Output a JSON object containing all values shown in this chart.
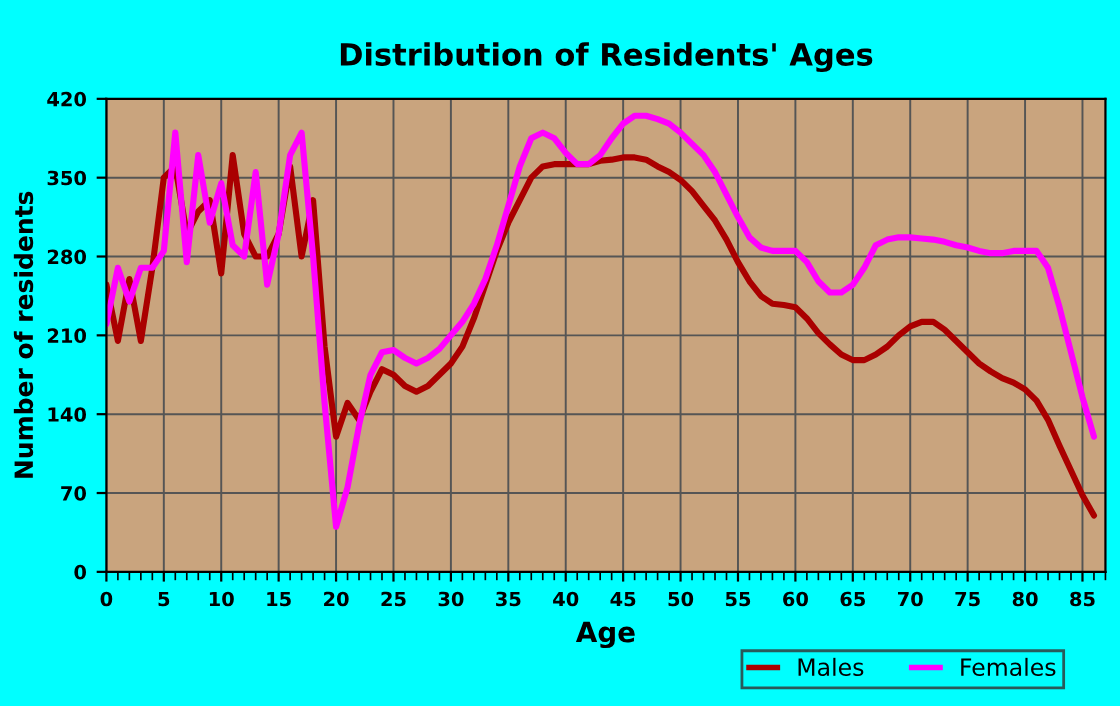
{
  "chart_data": {
    "type": "line",
    "title": "Distribution of Residents' Ages",
    "xlabel": "Age",
    "ylabel": "Number of residents",
    "x": [
      0,
      1,
      2,
      3,
      4,
      5,
      6,
      7,
      8,
      9,
      10,
      11,
      12,
      13,
      14,
      15,
      16,
      17,
      18,
      19,
      20,
      21,
      22,
      23,
      24,
      25,
      26,
      27,
      28,
      29,
      30,
      31,
      32,
      33,
      34,
      35,
      36,
      37,
      38,
      39,
      40,
      41,
      42,
      43,
      44,
      45,
      46,
      47,
      48,
      49,
      50,
      51,
      52,
      53,
      54,
      55,
      56,
      57,
      58,
      59,
      60,
      61,
      62,
      63,
      64,
      65,
      66,
      67,
      68,
      69,
      70,
      71,
      72,
      73,
      74,
      75,
      76,
      77,
      78,
      79,
      80,
      81,
      82,
      83,
      84,
      85,
      86
    ],
    "series": [
      {
        "name": "Males",
        "color": "#aa0000",
        "values": [
          255,
          205,
          260,
          205,
          270,
          350,
          360,
          300,
          320,
          330,
          265,
          370,
          300,
          280,
          280,
          300,
          360,
          280,
          330,
          200,
          120,
          150,
          135,
          160,
          180,
          175,
          165,
          160,
          165,
          175,
          185,
          200,
          225,
          255,
          285,
          310,
          330,
          350,
          360,
          362,
          362,
          362,
          362,
          365,
          366,
          368,
          368,
          366,
          360,
          355,
          348,
          338,
          325,
          312,
          295,
          275,
          258,
          245,
          238,
          237,
          235,
          225,
          212,
          202,
          193,
          188,
          188,
          193,
          200,
          210,
          218,
          222,
          222,
          215,
          205,
          195,
          185,
          178,
          172,
          168,
          162,
          152,
          135,
          112,
          90,
          68,
          50
        ]
      },
      {
        "name": "Females",
        "color": "#ff00ff",
        "values": [
          220,
          270,
          240,
          270,
          270,
          285,
          390,
          275,
          370,
          310,
          345,
          290,
          280,
          355,
          255,
          300,
          370,
          390,
          280,
          150,
          40,
          75,
          130,
          175,
          195,
          197,
          190,
          185,
          190,
          198,
          210,
          222,
          238,
          260,
          290,
          325,
          360,
          385,
          390,
          385,
          372,
          362,
          362,
          370,
          385,
          398,
          405,
          405,
          402,
          398,
          390,
          380,
          370,
          355,
          335,
          315,
          297,
          288,
          285,
          285,
          285,
          275,
          258,
          248,
          248,
          255,
          270,
          290,
          295,
          297,
          297,
          296,
          295,
          293,
          290,
          288,
          285,
          283,
          283,
          285,
          285,
          285,
          270,
          235,
          195,
          155,
          120
        ]
      }
    ],
    "xlim": [
      0,
      87
    ],
    "xticks": [
      0,
      5,
      10,
      15,
      20,
      25,
      30,
      35,
      40,
      45,
      50,
      55,
      60,
      65,
      70,
      75,
      80,
      85
    ],
    "ylim": [
      0,
      420
    ],
    "yticks": [
      0,
      70,
      140,
      210,
      280,
      350,
      420
    ],
    "grid": true,
    "legend": "bottom right",
    "marker": "none",
    "line_style": "solid"
  }
}
